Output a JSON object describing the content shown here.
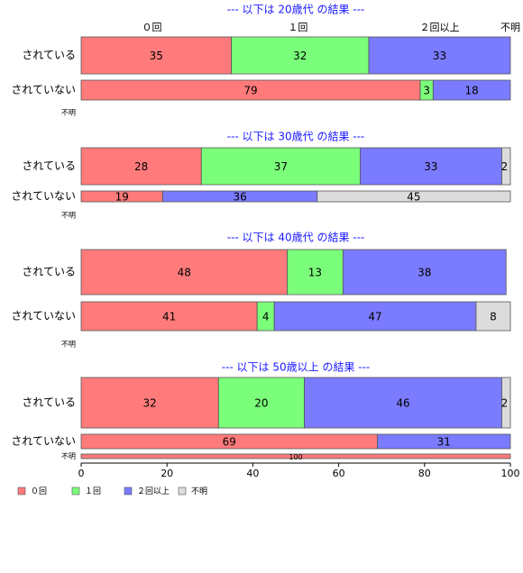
{
  "chart_data": {
    "type": "bar",
    "orientation": "horizontal-stacked-100",
    "xlim": [
      0,
      100
    ],
    "xticks": [
      "0",
      "20",
      "40",
      "60",
      "80",
      "100"
    ],
    "category_header": [
      "０回",
      "１回",
      "２回以上",
      "不明"
    ],
    "legend": {
      "placement": "bottom-left",
      "items": [
        {
          "label": "０回",
          "color": "#ff7b7b"
        },
        {
          "label": "１回",
          "color": "#7bff7b"
        },
        {
          "label": "２回以上",
          "color": "#7b7bff"
        },
        {
          "label": "不明",
          "color": "#dcdcdc"
        }
      ]
    },
    "groups": [
      {
        "title": "--- 以下は 20歳代 の結果 ---",
        "rows": [
          {
            "label": "されている",
            "values": [
              35,
              32,
              33,
              0
            ]
          },
          {
            "label": "されていない",
            "values": [
              79,
              3,
              18,
              0
            ]
          },
          {
            "label": "不明",
            "values": [
              0,
              0,
              0,
              0
            ]
          }
        ]
      },
      {
        "title": "--- 以下は 30歳代 の結果 ---",
        "rows": [
          {
            "label": "されている",
            "values": [
              28,
              37,
              33,
              2
            ]
          },
          {
            "label": "されていない",
            "values": [
              19,
              0,
              36,
              45
            ]
          },
          {
            "label": "不明",
            "values": [
              0,
              0,
              0,
              0
            ]
          }
        ]
      },
      {
        "title": "--- 以下は 40歳代 の結果 ---",
        "rows": [
          {
            "label": "されている",
            "values": [
              48,
              13,
              38,
              0
            ]
          },
          {
            "label": "されていない",
            "values": [
              41,
              4,
              47,
              8
            ]
          },
          {
            "label": "不明",
            "values": [
              0,
              0,
              0,
              0
            ]
          }
        ]
      },
      {
        "title": "--- 以下は 50歳以上 の結果 ---",
        "rows": [
          {
            "label": "されている",
            "values": [
              32,
              20,
              46,
              2
            ]
          },
          {
            "label": "されていない",
            "values": [
              69,
              0,
              31,
              0
            ]
          },
          {
            "label": "不明",
            "values": [
              100,
              0,
              0,
              0
            ]
          }
        ]
      }
    ]
  }
}
